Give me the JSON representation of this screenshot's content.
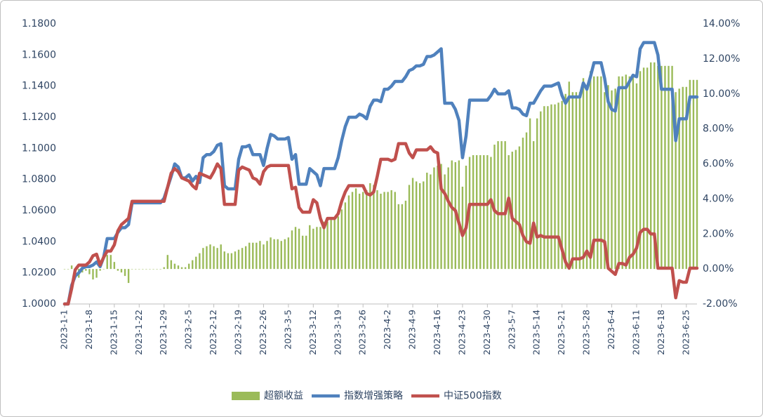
{
  "chart_data": {
    "type": "combo",
    "categories": [
      "2023-1-1",
      null,
      null,
      null,
      null,
      null,
      null,
      "2023-1-8",
      null,
      null,
      null,
      null,
      null,
      null,
      "2023-1-15",
      null,
      null,
      null,
      null,
      null,
      null,
      "2023-1-22",
      null,
      null,
      null,
      null,
      null,
      null,
      "2023-1-29",
      null,
      null,
      null,
      null,
      null,
      null,
      "2023-2-5",
      null,
      null,
      null,
      null,
      null,
      null,
      "2023-2-12",
      null,
      null,
      null,
      null,
      null,
      null,
      "2023-2-19",
      null,
      null,
      null,
      null,
      null,
      null,
      "2023-2-26",
      null,
      null,
      null,
      null,
      null,
      null,
      "2023-3-5",
      null,
      null,
      null,
      null,
      null,
      null,
      "2023-3-12",
      null,
      null,
      null,
      null,
      null,
      null,
      "2023-3-19",
      null,
      null,
      null,
      null,
      null,
      null,
      "2023-3-26",
      null,
      null,
      null,
      null,
      null,
      null,
      "2023-4-2",
      null,
      null,
      null,
      null,
      null,
      null,
      "2023-4-9",
      null,
      null,
      null,
      null,
      null,
      null,
      "2023-4-16",
      null,
      null,
      null,
      null,
      null,
      null,
      "2023-4-23",
      null,
      null,
      null,
      null,
      null,
      null,
      "2023-4-30",
      null,
      null,
      null,
      null,
      null,
      null,
      "2023-5-7",
      null,
      null,
      null,
      null,
      null,
      null,
      "2023-5-14",
      null,
      null,
      null,
      null,
      null,
      null,
      "2023-5-21",
      null,
      null,
      null,
      null,
      null,
      null,
      "2023-5-28",
      null,
      null,
      null,
      null,
      null,
      null,
      "2023-6-4",
      null,
      null,
      null,
      null,
      null,
      null,
      "2023-6-11",
      null,
      null,
      null,
      null,
      null,
      null,
      "2023-6-18",
      null,
      null,
      null,
      null,
      null,
      null,
      "2023-6-25",
      null,
      null,
      null
    ],
    "series": [
      {
        "name": "超额收益",
        "type": "bar",
        "axis": "y2",
        "color": "#9bbb59",
        "values": [
          0,
          0,
          0.2,
          -0.4,
          -0.5,
          -0.2,
          -0.1,
          -0.3,
          -0.6,
          -0.5,
          -0.1,
          0,
          0.8,
          0.8,
          0.4,
          -0.1,
          -0.2,
          -0.4,
          -0.8,
          0,
          0,
          0,
          0,
          0,
          0,
          0,
          0,
          0,
          0.1,
          0.8,
          0.5,
          0.3,
          0.2,
          0.1,
          0.1,
          0.3,
          0.5,
          0.7,
          0.9,
          1.2,
          1.3,
          1.4,
          1.3,
          1.2,
          1.4,
          1.0,
          0.9,
          0.9,
          1.0,
          1.1,
          1.2,
          1.3,
          1.5,
          1.5,
          1.5,
          1.6,
          1.4,
          1.6,
          1.8,
          1.7,
          1.7,
          1.6,
          1.7,
          1.8,
          2.2,
          2.4,
          2.3,
          1.9,
          1.9,
          2.5,
          2.3,
          2.4,
          2.4,
          2.7,
          2.7,
          2.8,
          2.9,
          3.0,
          3.4,
          3.8,
          4.2,
          4.4,
          4.6,
          4.3,
          4.4,
          4.5,
          4.9,
          4.8,
          4.5,
          4.3,
          4.4,
          4.4,
          4.5,
          4.4,
          3.7,
          3.7,
          3.9,
          4.8,
          5.2,
          5.0,
          4.9,
          5.0,
          5.5,
          5.4,
          5.8,
          5.9,
          6.0,
          5.4,
          5.8,
          6.2,
          6.1,
          6.2,
          4.7,
          5.9,
          6.4,
          6.5,
          6.5,
          6.5,
          6.5,
          6.5,
          6.4,
          7.1,
          7.3,
          7.3,
          7.3,
          6.5,
          6.7,
          6.8,
          7.0,
          7.5,
          7.8,
          8.6,
          7.3,
          8.6,
          9.0,
          9.3,
          9.3,
          9.4,
          9.4,
          9.5,
          9.6,
          10.0,
          10.7,
          10.1,
          10.1,
          10.1,
          10.9,
          10.2,
          11.3,
          11.0,
          11.0,
          11.0,
          10.1,
          10.5,
          10.2,
          10.3,
          11.0,
          11.0,
          11.1,
          11.0,
          11.1,
          10.6,
          11.3,
          11.5,
          11.5,
          11.8,
          11.8,
          11.6,
          11.6,
          11.6,
          11.6,
          11.6,
          10.1,
          10.3,
          10.4,
          10.4,
          10.8,
          10.8,
          10.8
        ]
      },
      {
        "name": "指数增强策略",
        "type": "line",
        "axis": "y",
        "color": "#4f81bd",
        "values": [
          1.0,
          1.0,
          1.012,
          1.018,
          1.02,
          1.023,
          1.024,
          1.024,
          1.025,
          1.027,
          1.024,
          1.03,
          1.042,
          1.042,
          1.042,
          1.046,
          1.049,
          1.049,
          1.051,
          1.065,
          1.065,
          1.065,
          1.065,
          1.065,
          1.065,
          1.065,
          1.065,
          1.065,
          1.068,
          1.075,
          1.082,
          1.09,
          1.088,
          1.081,
          1.081,
          1.083,
          1.079,
          1.082,
          1.078,
          1.094,
          1.096,
          1.096,
          1.098,
          1.102,
          1.103,
          1.076,
          1.074,
          1.074,
          1.074,
          1.093,
          1.101,
          1.101,
          1.102,
          1.096,
          1.096,
          1.096,
          1.089,
          1.1,
          1.109,
          1.108,
          1.106,
          1.106,
          1.106,
          1.107,
          1.093,
          1.096,
          1.077,
          1.077,
          1.077,
          1.087,
          1.085,
          1.083,
          1.076,
          1.087,
          1.087,
          1.087,
          1.087,
          1.094,
          1.105,
          1.114,
          1.12,
          1.12,
          1.12,
          1.122,
          1.121,
          1.119,
          1.127,
          1.131,
          1.131,
          1.13,
          1.138,
          1.138,
          1.14,
          1.143,
          1.143,
          1.143,
          1.146,
          1.15,
          1.151,
          1.153,
          1.153,
          1.154,
          1.159,
          1.159,
          1.16,
          1.162,
          1.164,
          1.129,
          1.129,
          1.129,
          1.125,
          1.118,
          1.094,
          1.108,
          1.131,
          1.131,
          1.131,
          1.131,
          1.131,
          1.131,
          1.134,
          1.138,
          1.135,
          1.135,
          1.135,
          1.137,
          1.126,
          1.126,
          1.125,
          1.122,
          1.121,
          1.129,
          1.129,
          1.133,
          1.137,
          1.14,
          1.14,
          1.14,
          1.141,
          1.142,
          1.134,
          1.129,
          1.133,
          1.133,
          1.133,
          1.133,
          1.142,
          1.138,
          1.146,
          1.155,
          1.155,
          1.155,
          1.145,
          1.13,
          1.125,
          1.124,
          1.139,
          1.139,
          1.139,
          1.143,
          1.147,
          1.146,
          1.164,
          1.168,
          1.168,
          1.168,
          1.168,
          1.16,
          1.138,
          1.138,
          1.138,
          1.138,
          1.105,
          1.119,
          1.119,
          1.119,
          1.133,
          1.133,
          1.133
        ]
      },
      {
        "name": "中证500指数",
        "type": "line",
        "axis": "y",
        "color": "#c0504d",
        "values": [
          1.0,
          1.0,
          1.01,
          1.022,
          1.025,
          1.025,
          1.025,
          1.027,
          1.031,
          1.032,
          1.025,
          1.03,
          1.034,
          1.034,
          1.038,
          1.047,
          1.051,
          1.053,
          1.055,
          1.066,
          1.066,
          1.066,
          1.066,
          1.066,
          1.066,
          1.066,
          1.066,
          1.066,
          1.066,
          1.075,
          1.084,
          1.087,
          1.085,
          1.081,
          1.08,
          1.079,
          1.076,
          1.074,
          1.084,
          1.083,
          1.082,
          1.081,
          1.085,
          1.09,
          1.087,
          1.064,
          1.064,
          1.064,
          1.064,
          1.086,
          1.088,
          1.087,
          1.086,
          1.081,
          1.08,
          1.077,
          1.085,
          1.088,
          1.089,
          1.089,
          1.089,
          1.089,
          1.089,
          1.089,
          1.074,
          1.075,
          1.062,
          1.059,
          1.059,
          1.059,
          1.067,
          1.065,
          1.055,
          1.049,
          1.055,
          1.055,
          1.055,
          1.058,
          1.066,
          1.072,
          1.076,
          1.076,
          1.076,
          1.076,
          1.076,
          1.071,
          1.07,
          1.072,
          1.082,
          1.093,
          1.093,
          1.093,
          1.092,
          1.093,
          1.103,
          1.103,
          1.103,
          1.097,
          1.094,
          1.099,
          1.099,
          1.099,
          1.099,
          1.101,
          1.098,
          1.097,
          1.074,
          1.071,
          1.066,
          1.062,
          1.06,
          1.052,
          1.044,
          1.049,
          1.064,
          1.064,
          1.064,
          1.064,
          1.064,
          1.064,
          1.067,
          1.06,
          1.058,
          1.058,
          1.058,
          1.068,
          1.055,
          1.053,
          1.051,
          1.044,
          1.04,
          1.039,
          1.052,
          1.043,
          1.044,
          1.043,
          1.043,
          1.043,
          1.043,
          1.043,
          1.035,
          1.027,
          1.023,
          1.029,
          1.029,
          1.029,
          1.03,
          1.034,
          1.03,
          1.041,
          1.041,
          1.041,
          1.04,
          1.023,
          1.021,
          1.019,
          1.026,
          1.026,
          1.025,
          1.03,
          1.032,
          1.036,
          1.046,
          1.048,
          1.048,
          1.045,
          1.045,
          1.023,
          1.023,
          1.023,
          1.023,
          1.023,
          1.004,
          1.015,
          1.014,
          1.014,
          1.023,
          1.023,
          1.023
        ]
      }
    ],
    "ylim": [
      1.0,
      1.18
    ],
    "yticks": [
      {
        "value": 1.0,
        "label": "1.0000"
      },
      {
        "value": 1.02,
        "label": "1.0200"
      },
      {
        "value": 1.04,
        "label": "1.0400"
      },
      {
        "value": 1.06,
        "label": "1.0600"
      },
      {
        "value": 1.08,
        "label": "1.0800"
      },
      {
        "value": 1.1,
        "label": "1.1000"
      },
      {
        "value": 1.12,
        "label": "1.1200"
      },
      {
        "value": 1.14,
        "label": "1.1400"
      },
      {
        "value": 1.16,
        "label": "1.1600"
      },
      {
        "value": 1.18,
        "label": "1.1800"
      }
    ],
    "y2lim": [
      -2,
      14
    ],
    "y2ticks": [
      {
        "value": -2,
        "label": "-2.00%"
      },
      {
        "value": 0,
        "label": "0.00%"
      },
      {
        "value": 2,
        "label": "2.00%"
      },
      {
        "value": 4,
        "label": "4.00%"
      },
      {
        "value": 6,
        "label": "6.00%"
      },
      {
        "value": 8,
        "label": "8.00%"
      },
      {
        "value": 10,
        "label": "10.00%"
      },
      {
        "value": 12,
        "label": "12.00%"
      },
      {
        "value": 14,
        "label": "14.00%"
      }
    ],
    "legend": "bottom"
  }
}
